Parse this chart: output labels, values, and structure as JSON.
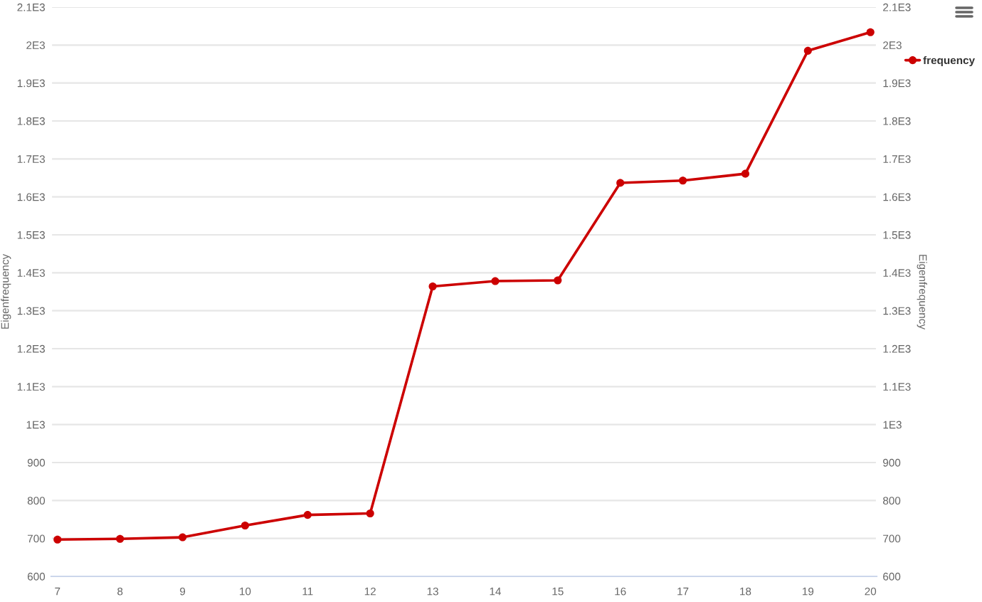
{
  "chart_data": {
    "type": "line",
    "x": [
      7,
      8,
      9,
      10,
      11,
      12,
      13,
      14,
      15,
      16,
      17,
      18,
      19,
      20
    ],
    "series": [
      {
        "name": "frequency",
        "color": "#cc0000",
        "values": [
          697,
          699,
          703,
          734,
          762,
          766,
          1364,
          1378,
          1380,
          1637,
          1643,
          1661,
          1985,
          2034
        ]
      }
    ],
    "xlim": [
      6.9,
      20.1
    ],
    "xticks": [
      7,
      8,
      9,
      10,
      11,
      12,
      13,
      14,
      15,
      16,
      17,
      18,
      19,
      20
    ],
    "ylim": [
      600,
      2100
    ],
    "yticks": [
      600,
      700,
      800,
      900,
      {
        "value": 1000,
        "label": "1E3"
      },
      {
        "value": 1100,
        "label": "1.1E3"
      },
      {
        "value": 1200,
        "label": "1.2E3"
      },
      {
        "value": 1300,
        "label": "1.3E3"
      },
      {
        "value": 1400,
        "label": "1.4E3"
      },
      {
        "value": 1500,
        "label": "1.5E3"
      },
      {
        "value": 1600,
        "label": "1.6E3"
      },
      {
        "value": 1700,
        "label": "1.7E3"
      },
      {
        "value": 1800,
        "label": "1.8E3"
      },
      {
        "value": 1900,
        "label": "1.9E3"
      },
      {
        "value": 2000,
        "label": "2E3"
      },
      {
        "value": 2100,
        "label": "2.1E3"
      }
    ],
    "y2lim": [
      600,
      2100
    ],
    "y2ticks": [
      600,
      700,
      800,
      900,
      {
        "value": 1000,
        "label": "1E3"
      },
      {
        "value": 1100,
        "label": "1.1E3"
      },
      {
        "value": 1200,
        "label": "1.2E3"
      },
      {
        "value": 1300,
        "label": "1.3E3"
      },
      {
        "value": 1400,
        "label": "1.4E3"
      },
      {
        "value": 1500,
        "label": "1.5E3"
      },
      {
        "value": 1600,
        "label": "1.6E3"
      },
      {
        "value": 1700,
        "label": "1.7E3"
      },
      {
        "value": 1800,
        "label": "1.8E3"
      },
      {
        "value": 1900,
        "label": "1.9E3"
      },
      {
        "value": 2000,
        "label": "2E3"
      },
      {
        "value": 2100,
        "label": "2.1E3"
      }
    ],
    "ylabel": "Eigenfrequency",
    "y2label": "Eigenfrequency",
    "grid": "y",
    "legend": "top right",
    "marker": "circle",
    "line_style": "solid"
  }
}
